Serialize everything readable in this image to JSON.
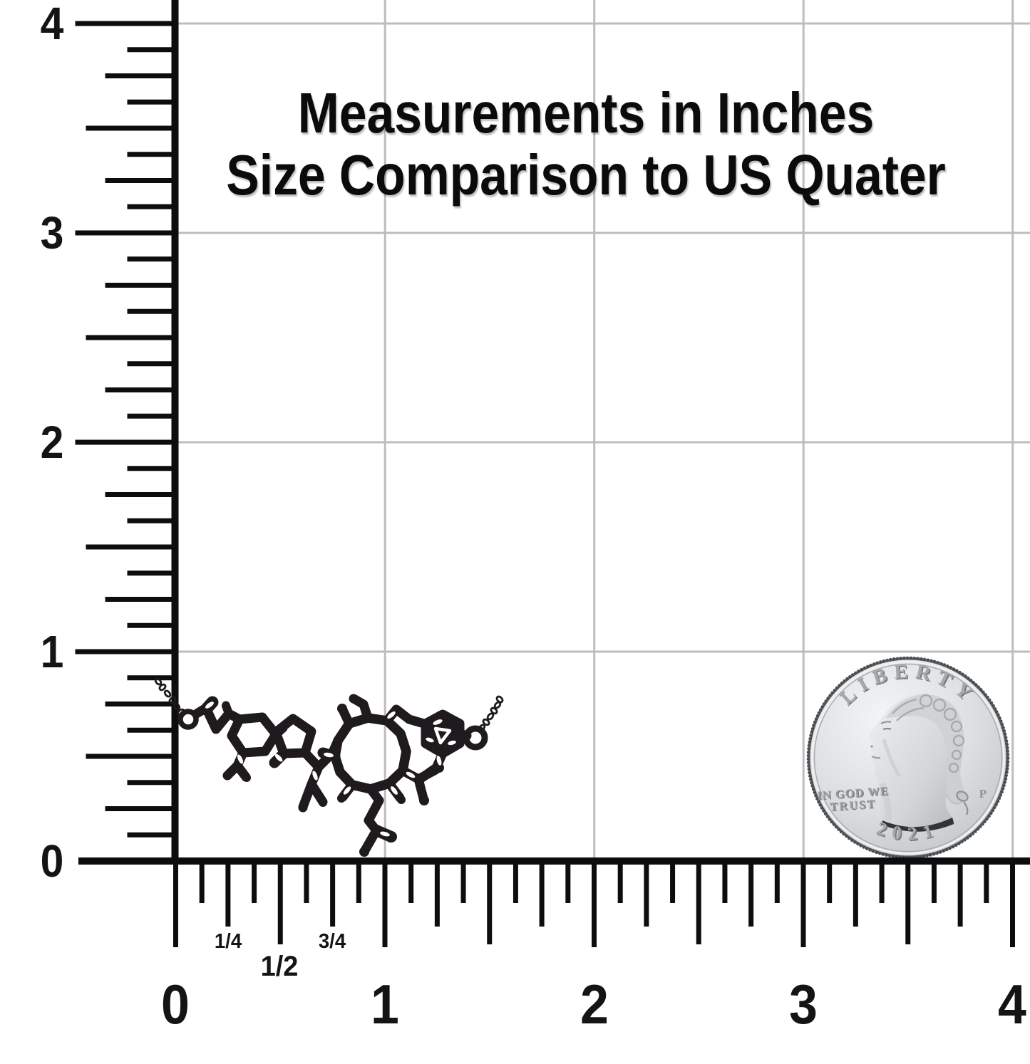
{
  "title": {
    "line1": "Measurements in Inches",
    "line2": "Size Comparison to US Quater"
  },
  "left_ruler": {
    "unit_labels": [
      "4",
      "3",
      "2",
      "1",
      "0"
    ]
  },
  "bottom_ruler": {
    "unit_labels": [
      "0",
      "1",
      "2",
      "3",
      "4"
    ],
    "fraction_labels": [
      "1/4",
      "1/2",
      "3/4"
    ]
  },
  "coin": {
    "legend": "LIBERTY",
    "motto_line1": "IN GOD WE",
    "motto_line2": "TRUST",
    "mint_mark": "P",
    "year": "2021"
  },
  "figure": {
    "pendant": "oxytocin-molecule-necklace-pendant",
    "coin": "us-quarter-2021-obverse"
  },
  "colors": {
    "background": "#ffffff",
    "gridline": "#bdbdbd",
    "axis": "#0d0d0d",
    "text": "#141414",
    "pendant": "#1e1a1d",
    "coin_face_light": "#f2f3f4",
    "coin_face_dark": "#c2c5c8",
    "coin_lettering": "#8f9295",
    "coin_edge": "#55585a"
  }
}
